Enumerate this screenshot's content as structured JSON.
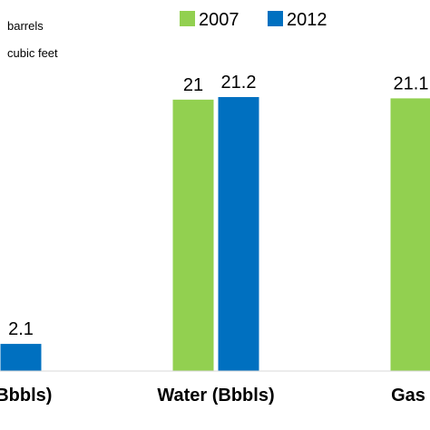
{
  "chart_data": {
    "type": "bar",
    "notes": [
      "barrels",
      "cubic feet"
    ],
    "categories": [
      "(Bbbls)",
      "Water (Bbbls)",
      "Gas"
    ],
    "series": [
      {
        "name": "2007",
        "color": "#92d050",
        "values": [
          null,
          21,
          21.1
        ]
      },
      {
        "name": "2012",
        "color": "#0070c0",
        "values": [
          2.1,
          21.2,
          null
        ]
      }
    ],
    "value_labels": [
      [
        null,
        "21",
        "21.1"
      ],
      [
        "2.1",
        "21.2",
        null
      ]
    ],
    "ylim": [
      0,
      28.5
    ],
    "grid": false,
    "legend_position": "top-right"
  }
}
